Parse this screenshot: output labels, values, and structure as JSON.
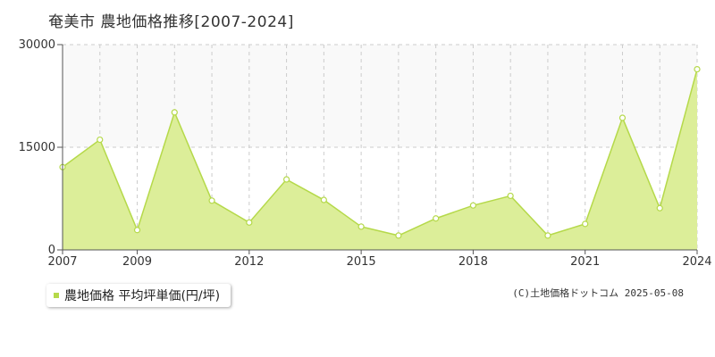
{
  "title": "奄美市 農地価格推移[2007-2024]",
  "legend": {
    "label": "農地価格 平均坪単価(円/坪)"
  },
  "copyright": "(C)土地価格ドットコム 2025-05-08",
  "colors": {
    "fill": "#dcee99",
    "line": "#b5d94a",
    "band": "#f9f9f9",
    "grid": "#cccccc",
    "axis": "#555555",
    "marker": "#b5d94a"
  },
  "chart_data": {
    "type": "area",
    "title": "奄美市 農地価格推移[2007-2024]",
    "xlabel": "",
    "ylabel": "",
    "x": [
      2007,
      2008,
      2009,
      2010,
      2011,
      2012,
      2013,
      2014,
      2015,
      2016,
      2017,
      2018,
      2019,
      2020,
      2021,
      2022,
      2023,
      2024
    ],
    "series": [
      {
        "name": "農地価格",
        "values": [
          12100,
          16100,
          2900,
          20100,
          7200,
          4000,
          10300,
          7300,
          3400,
          2100,
          4600,
          6500,
          7900,
          2100,
          3800,
          19300,
          6100,
          26400
        ]
      }
    ],
    "ylim": [
      0,
      30000
    ],
    "yticks": [
      "0",
      "15000",
      "30000"
    ],
    "xticks": [
      "2007",
      "2009",
      "2012",
      "2015",
      "2018",
      "2021",
      "2024"
    ],
    "grid": true,
    "legend_position": "bottom-left"
  }
}
